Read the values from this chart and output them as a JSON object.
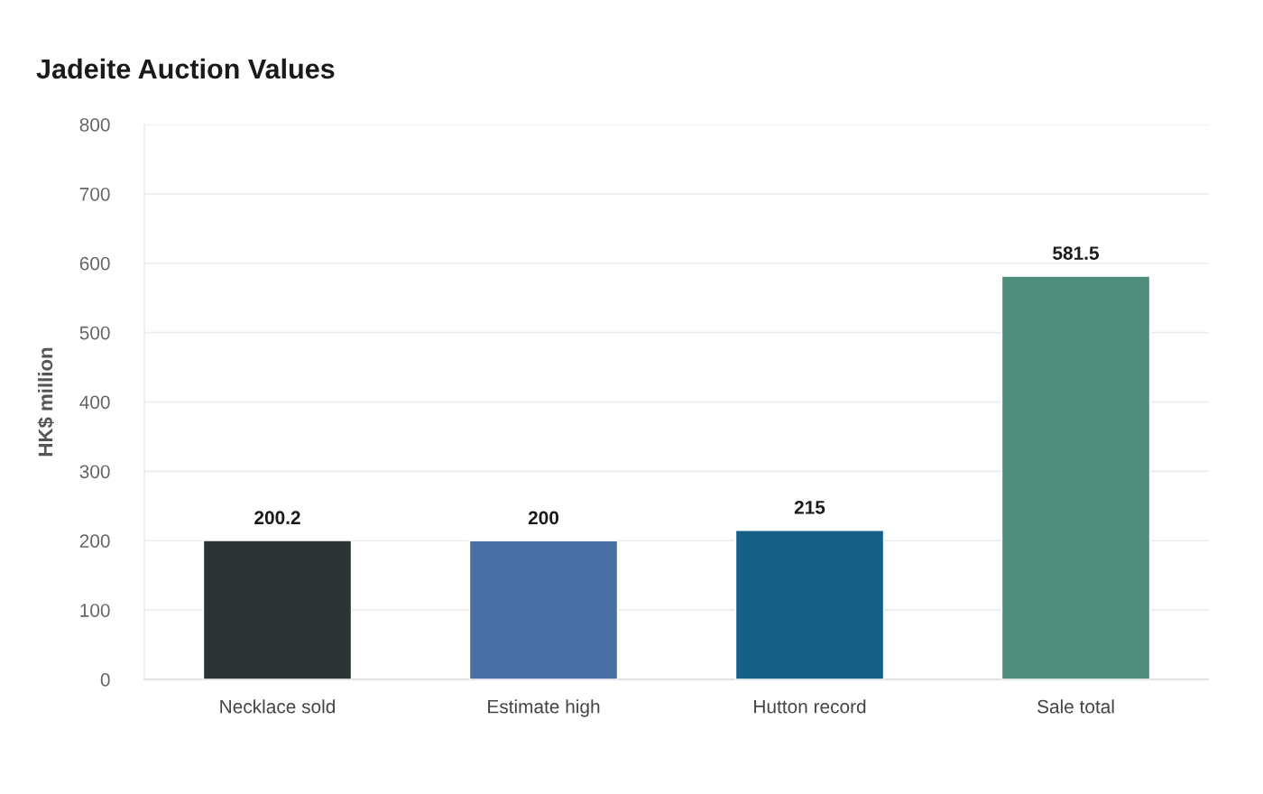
{
  "chart_data": {
    "type": "bar",
    "title": "Jadeite Auction Values",
    "ylabel": "HK$ million",
    "categories": [
      "Necklace sold",
      "Estimate high",
      "Hutton record",
      "Sale total"
    ],
    "values": [
      200.2,
      200,
      215,
      581.5
    ],
    "colors": [
      "#2d3436",
      "#4a6fa5",
      "#166088",
      "#4e8d7c"
    ],
    "ylim": [
      0,
      800
    ],
    "yticks": [
      0,
      100,
      200,
      300,
      400,
      500,
      600,
      700,
      800
    ],
    "grid": "y",
    "data_labels": true
  }
}
